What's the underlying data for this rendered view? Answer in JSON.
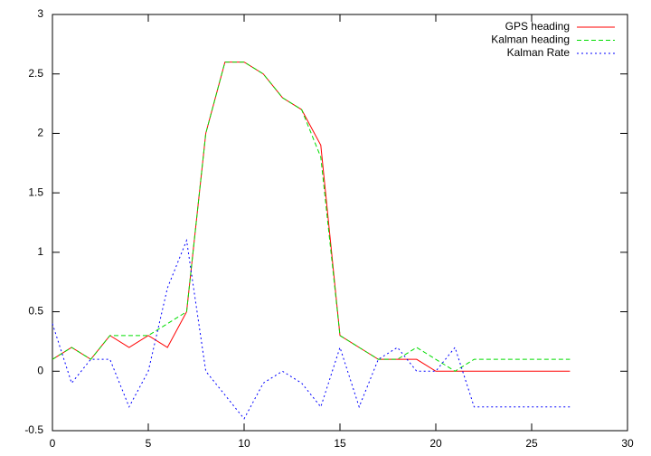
{
  "chart_data": {
    "type": "line",
    "x": [
      0,
      1,
      2,
      3,
      4,
      5,
      6,
      7,
      8,
      9,
      10,
      11,
      12,
      13,
      14,
      15,
      16,
      17,
      18,
      19,
      20,
      21,
      22,
      23,
      24,
      25,
      26,
      27
    ],
    "series": [
      {
        "name": "GPS heading",
        "color": "#ff0000",
        "dash": "solid",
        "values": [
          0.1,
          0.2,
          0.1,
          0.3,
          0.2,
          0.3,
          0.2,
          0.5,
          2.0,
          2.6,
          2.6,
          2.5,
          2.3,
          2.2,
          1.9,
          0.3,
          0.2,
          0.1,
          0.1,
          0.1,
          0,
          0,
          0,
          0,
          0,
          0,
          0,
          0
        ]
      },
      {
        "name": "Kalman heading",
        "color": "#00dd00",
        "dash": "dashed",
        "values": [
          0.1,
          0.2,
          0.1,
          0.3,
          0.3,
          0.3,
          0.4,
          0.5,
          2.0,
          2.6,
          2.6,
          2.5,
          2.3,
          2.2,
          1.8,
          0.3,
          0.2,
          0.1,
          0.1,
          0.2,
          0.1,
          0,
          0.1,
          0.1,
          0.1,
          0.1,
          0.1,
          0.1
        ]
      },
      {
        "name": "Kalman Rate",
        "color": "#0000ff",
        "dash": "dotted",
        "values": [
          0.4,
          -0.1,
          0.1,
          0.1,
          -0.3,
          0,
          0.7,
          1.1,
          0,
          -0.2,
          -0.4,
          -0.1,
          0,
          -0.1,
          -0.3,
          0.2,
          -0.3,
          0.1,
          0.2,
          0,
          0,
          0.2,
          -0.3,
          -0.3,
          -0.3,
          -0.3,
          -0.3,
          -0.3
        ]
      }
    ],
    "xlim": [
      0,
      30
    ],
    "xticks": [
      0,
      5,
      10,
      15,
      20,
      25,
      30
    ],
    "ylim": [
      -0.5,
      3
    ],
    "yticks": [
      -0.5,
      0,
      0.5,
      1,
      1.5,
      2,
      2.5,
      3
    ],
    "grid": false,
    "legend": "top-right"
  }
}
